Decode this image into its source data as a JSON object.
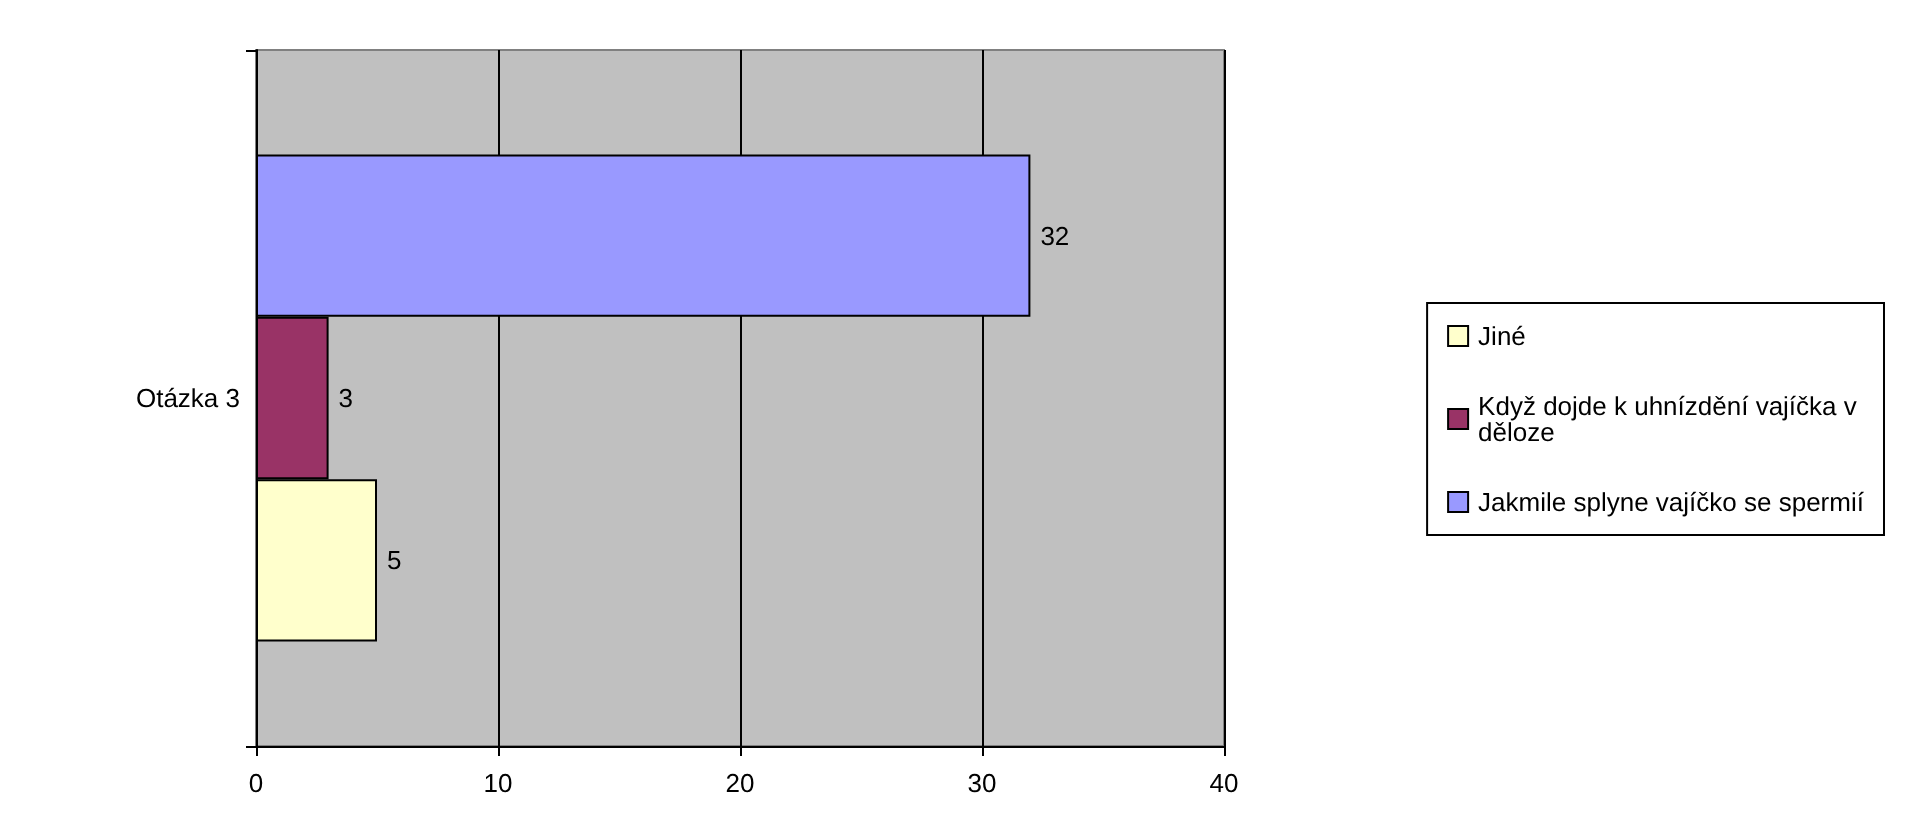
{
  "chart_data": {
    "type": "bar",
    "orientation": "horizontal",
    "categories": [
      "Otázka 3"
    ],
    "series": [
      {
        "name": "Jakmile splyne vajíčko se spermií",
        "color": "#9999ff",
        "values": [
          32
        ]
      },
      {
        "name": "Když dojde k uhnízdění vajíčka v děloze",
        "color": "#993366",
        "values": [
          3
        ]
      },
      {
        "name": "Jiné",
        "color": "#ffffcc",
        "values": [
          5
        ]
      }
    ],
    "xlim": [
      0,
      40
    ],
    "xticks": [
      0,
      10,
      20,
      30,
      40
    ],
    "grid": "x",
    "legend": "right",
    "data_labels": true
  }
}
